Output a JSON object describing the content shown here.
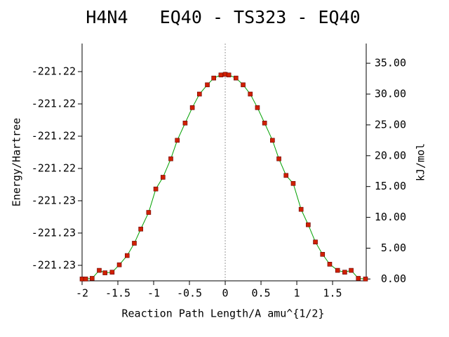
{
  "chart_data": {
    "type": "line",
    "title": "H4N4   EQ40 - TS323 - EQ40",
    "xlabel": "Reaction Path Length/A amu^{1/2}",
    "ylabel": "Energy/Hartree",
    "y2label": "kJ/mol",
    "x": [
      -2,
      -1.95,
      -1.86,
      -1.76,
      -1.68,
      -1.58,
      -1.48,
      -1.37,
      -1.27,
      -1.18,
      -1.07,
      -0.97,
      -0.87,
      -0.76,
      -0.67,
      -0.56,
      -0.46,
      -0.36,
      -0.25,
      -0.16,
      -0.06,
      0,
      0.05,
      0.15,
      0.25,
      0.35,
      0.45,
      0.55,
      0.66,
      0.75,
      0.85,
      0.95,
      1.06,
      1.16,
      1.26,
      1.36,
      1.46,
      1.57,
      1.67,
      1.76,
      1.86,
      1.96
    ],
    "series": [
      {
        "color": "#00a000",
        "marker_color": "#d02000",
        "axis": "y2",
        "values": [
          0,
          0,
          0.1,
          1.4,
          1.0,
          1.1,
          2.3,
          3.8,
          5.8,
          8.1,
          10.8,
          14.6,
          16.5,
          19.5,
          22.5,
          25.3,
          27.8,
          30.0,
          31.5,
          32.6,
          33.1,
          33.2,
          33.1,
          32.6,
          31.5,
          30.0,
          27.8,
          25.3,
          22.5,
          19.5,
          16.8,
          15.5,
          11.3,
          8.8,
          6.0,
          4.0,
          2.4,
          1.4,
          1.1,
          1.4,
          0.1,
          0
        ]
      }
    ],
    "xlim": [
      -2,
      1.97
    ],
    "xticks": [
      -2,
      -1.5,
      -1,
      -0.5,
      0,
      0.5,
      1,
      1.5
    ],
    "ylim": [
      -221.23126,
      -221.21656
    ],
    "yticks": [
      {
        "value": -221.2303,
        "label": "-221.23"
      },
      {
        "value": -221.2283,
        "label": "-221.23"
      },
      {
        "value": -221.2263,
        "label": "-221.23"
      },
      {
        "value": -221.2243,
        "label": "-221.22"
      },
      {
        "value": -221.2223,
        "label": "-221.22"
      },
      {
        "value": -221.2203,
        "label": "-221.22"
      },
      {
        "value": -221.2183,
        "label": "-221.22"
      }
    ],
    "y2lim": [
      -0.3,
      38.2
    ],
    "y2ticks": [
      {
        "value": 0,
        "label": "0.00"
      },
      {
        "value": 5,
        "label": "5.00"
      },
      {
        "value": 10,
        "label": "10.00"
      },
      {
        "value": 15,
        "label": "15.00"
      },
      {
        "value": 20,
        "label": "20.00"
      },
      {
        "value": 25,
        "label": "25.00"
      },
      {
        "value": 30,
        "label": "30.00"
      },
      {
        "value": 35,
        "label": "35.00"
      }
    ],
    "ts_line_x": 0
  }
}
